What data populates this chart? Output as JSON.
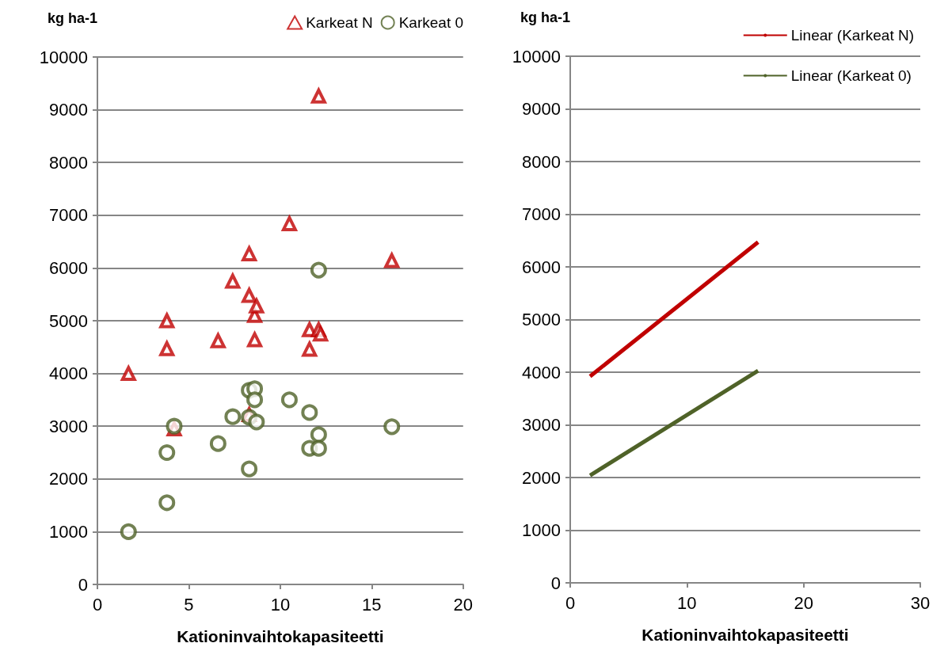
{
  "chart_data": [
    {
      "type": "scatter",
      "xlabel": "Kationinvaihtokapasiteetti",
      "ylabel": "kg ha-1",
      "xlim": [
        0,
        20
      ],
      "xticks": [
        0,
        5,
        10,
        15,
        20
      ],
      "ylim": [
        0,
        10000
      ],
      "yticks": [
        0,
        1000,
        2000,
        3000,
        4000,
        5000,
        6000,
        7000,
        8000,
        9000,
        10000
      ],
      "grid": "y",
      "legend": "top right",
      "series": [
        {
          "name": "Karkeat N",
          "color": "#c00000",
          "marker": "triangle",
          "x": [
            1.7,
            3.8,
            3.8,
            4.2,
            6.6,
            7.4,
            8.3,
            8.3,
            8.6,
            8.7,
            8.6,
            8.3,
            10.5,
            11.6,
            11.6,
            12.1,
            12.2,
            12.1,
            16.1
          ],
          "values": [
            4000,
            4470,
            5000,
            2950,
            4620,
            5750,
            6270,
            5480,
            5100,
            5280,
            4640,
            3220,
            6840,
            4460,
            4830,
            4830,
            4750,
            9260,
            6140
          ]
        },
        {
          "name": "Karkeat 0",
          "color": "#4f6228",
          "marker": "circle",
          "x": [
            1.7,
            3.8,
            3.8,
            4.2,
            6.6,
            7.4,
            8.3,
            8.3,
            8.7,
            8.3,
            8.6,
            8.6,
            10.5,
            11.6,
            12.1,
            11.6,
            12.1,
            12.1,
            16.1
          ],
          "values": [
            1000,
            1550,
            2500,
            3000,
            2670,
            3180,
            2190,
            3170,
            3080,
            3680,
            3710,
            3500,
            3500,
            3260,
            2840,
            2580,
            2580,
            5960,
            2990
          ]
        }
      ]
    },
    {
      "type": "line",
      "xlabel": "Kationinvaihtokapasiteetti",
      "ylabel": "kg ha-1",
      "xlim": [
        0,
        30
      ],
      "xticks": [
        0,
        10,
        20,
        30
      ],
      "ylim": [
        0,
        10000
      ],
      "yticks": [
        0,
        1000,
        2000,
        3000,
        4000,
        5000,
        6000,
        7000,
        8000,
        9000,
        10000
      ],
      "grid": "y",
      "legend": "top right",
      "marker": "none",
      "series": [
        {
          "name": "Linear (Karkeat N)",
          "color": "#c00000",
          "x": [
            1.7,
            16.1
          ],
          "values": [
            3920,
            6470
          ]
        },
        {
          "name": "Linear (Karkeat 0)",
          "color": "#4f6228",
          "x": [
            1.7,
            16.1
          ],
          "values": [
            2040,
            4030
          ]
        }
      ]
    }
  ]
}
